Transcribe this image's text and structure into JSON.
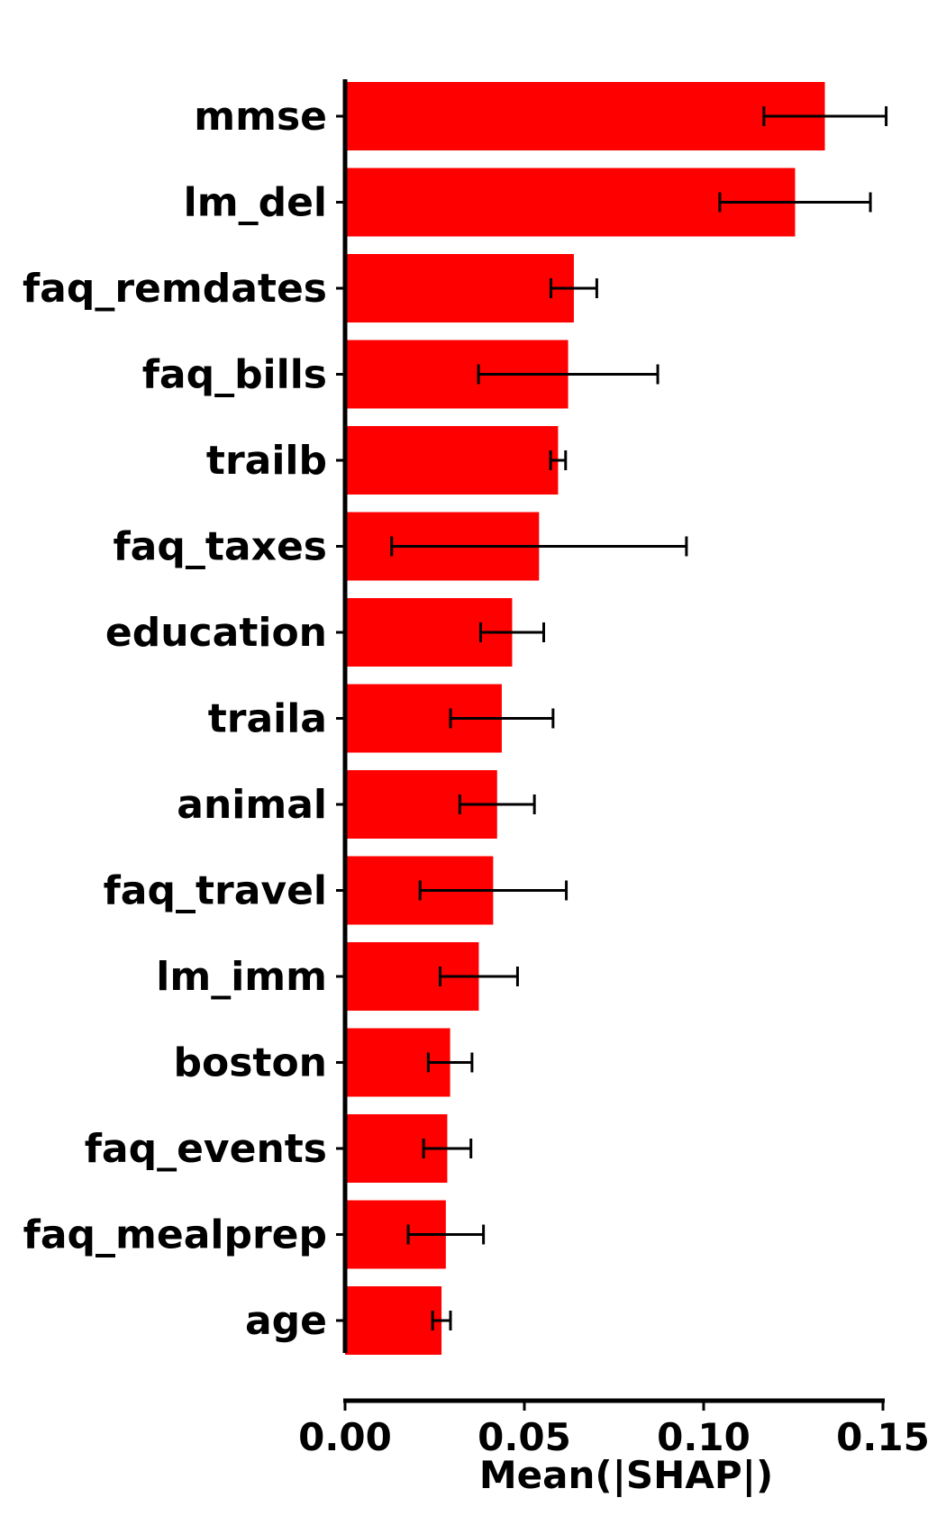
{
  "chart_data": {
    "type": "bar",
    "orientation": "horizontal",
    "title": "",
    "xlabel": "Mean(|SHAP|)",
    "ylabel": "",
    "xlim": [
      0.0,
      0.15
    ],
    "xticks": [
      "0.00",
      "0.05",
      "0.10",
      "0.15"
    ],
    "xtick_values": [
      0.0,
      0.05,
      0.1,
      0.15
    ],
    "grid": false,
    "bar_color": "#ff0000",
    "error_color": "#000000",
    "categories": [
      "mmse",
      "lm_del",
      "faq_remdates",
      "faq_bills",
      "trailb",
      "faq_taxes",
      "education",
      "traila",
      "animal",
      "faq_travel",
      "lm_imm",
      "boston",
      "faq_events",
      "faq_mealprep",
      "age"
    ],
    "values": [
      0.1338,
      0.1255,
      0.0638,
      0.0622,
      0.0594,
      0.0541,
      0.0466,
      0.0437,
      0.0424,
      0.0413,
      0.0373,
      0.0293,
      0.0285,
      0.0281,
      0.0269
    ],
    "error_low": [
      0.1168,
      0.1045,
      0.0574,
      0.0372,
      0.0573,
      0.013,
      0.0378,
      0.0294,
      0.032,
      0.0209,
      0.0265,
      0.0232,
      0.0219,
      0.0176,
      0.0244
    ],
    "error_high": [
      0.1509,
      0.1465,
      0.0702,
      0.0872,
      0.0615,
      0.0952,
      0.0554,
      0.058,
      0.0528,
      0.0617,
      0.0481,
      0.0354,
      0.0351,
      0.0386,
      0.0294
    ]
  }
}
